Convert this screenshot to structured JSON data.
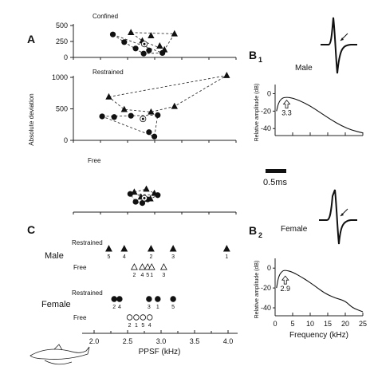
{
  "chart_data": [
    {
      "panel": "A",
      "type": "scatter",
      "ylabel": "Absolute deviation",
      "x_range": [
        2.0,
        4.0
      ],
      "subplots": [
        {
          "name": "Confined",
          "ylim": [
            0,
            500
          ],
          "yticks": [
            "500",
            "250",
            "0"
          ],
          "male": [
            [
              2.55,
              390
            ],
            [
              2.72,
              260
            ],
            [
              2.85,
              340
            ],
            [
              2.98,
              180
            ],
            [
              3.05,
              120
            ],
            [
              3.2,
              370
            ]
          ],
          "female": [
            [
              2.28,
              360
            ],
            [
              2.45,
              240
            ],
            [
              2.62,
              140
            ],
            [
              2.74,
              60
            ],
            [
              2.82,
              110
            ],
            [
              3.02,
              70
            ]
          ],
          "centroid": [
            2.75,
            210
          ]
        },
        {
          "name": "Restrained",
          "ylim": [
            0,
            1000
          ],
          "yticks": [
            "1000",
            "500",
            "0"
          ],
          "male": [
            [
              2.22,
              690
            ],
            [
              2.45,
              490
            ],
            [
              2.85,
              450
            ],
            [
              3.2,
              540
            ],
            [
              3.98,
              1030
            ]
          ],
          "female": [
            [
              2.12,
              380
            ],
            [
              2.3,
              370
            ],
            [
              2.55,
              390
            ],
            [
              2.82,
              130
            ],
            [
              2.9,
              60
            ],
            [
              2.95,
              400
            ]
          ],
          "centroid": [
            2.73,
            340
          ]
        },
        {
          "name": "Free",
          "ylim": [
            0,
            500
          ],
          "male": [
            [
              2.6,
              330
            ],
            [
              2.7,
              250
            ],
            [
              2.78,
              380
            ],
            [
              2.84,
              220
            ],
            [
              2.9,
              310
            ]
          ],
          "female": [
            [
              2.54,
              300
            ],
            [
              2.62,
              170
            ],
            [
              2.72,
              150
            ],
            [
              2.8,
              210
            ],
            [
              2.95,
              280
            ]
          ],
          "centroid": [
            2.75,
            230
          ]
        }
      ]
    },
    {
      "panel": "C",
      "type": "scatter",
      "xlabel": "PPSF (kHz)",
      "xlim": [
        2.0,
        4.0
      ],
      "xticks": [
        "2.0",
        "2.5",
        "3.0",
        "3.5",
        "4.0"
      ],
      "groups": [
        {
          "sex": "Male",
          "rows": [
            {
              "label": "Restrained",
              "marker": "filled-triangle",
              "points": [
                {
                  "x": 2.22,
                  "n": "5"
                },
                {
                  "x": 2.45,
                  "n": "4"
                },
                {
                  "x": 2.85,
                  "n": "2"
                },
                {
                  "x": 3.18,
                  "n": "3"
                },
                {
                  "x": 3.98,
                  "n": "1"
                }
              ]
            },
            {
              "label": "Free",
              "marker": "open-triangle",
              "points": [
                {
                  "x": 2.6,
                  "n": "2"
                },
                {
                  "x": 2.72,
                  "n": "4"
                },
                {
                  "x": 2.8,
                  "n": "5"
                },
                {
                  "x": 2.86,
                  "n": "1"
                },
                {
                  "x": 3.04,
                  "n": "3"
                }
              ]
            }
          ]
        },
        {
          "sex": "Female",
          "rows": [
            {
              "label": "Restrained",
              "marker": "filled-circle",
              "points": [
                {
                  "x": 2.3,
                  "n": "2"
                },
                {
                  "x": 2.38,
                  "n": "4"
                },
                {
                  "x": 2.82,
                  "n": "3"
                },
                {
                  "x": 2.95,
                  "n": "1"
                },
                {
                  "x": 3.18,
                  "n": "5"
                }
              ]
            },
            {
              "label": "Free",
              "marker": "open-circle",
              "points": [
                {
                  "x": 2.53,
                  "n": "2"
                },
                {
                  "x": 2.63,
                  "n": "1"
                },
                {
                  "x": 2.73,
                  "n": "5"
                },
                {
                  "x": 2.83,
                  "n": "4"
                }
              ]
            }
          ]
        }
      ]
    },
    {
      "panel": "B1",
      "type": "line",
      "label": "Male",
      "ylabel": "Relative amplitude (dB)",
      "yticks": [
        "0",
        "-20",
        "-40"
      ],
      "ylim": [
        -48,
        5
      ],
      "xlim": [
        0,
        25
      ],
      "peak_label": "3.3",
      "peak_x": 3.3,
      "spectrum": [
        [
          0.4,
          -20
        ],
        [
          1,
          -10
        ],
        [
          2,
          -5
        ],
        [
          3.3,
          -4
        ],
        [
          5,
          -5
        ],
        [
          7,
          -8
        ],
        [
          10,
          -14
        ],
        [
          13,
          -22
        ],
        [
          16,
          -30
        ],
        [
          19,
          -37
        ],
        [
          22,
          -42
        ],
        [
          25,
          -45
        ]
      ]
    },
    {
      "panel": "B2",
      "type": "line",
      "label": "Female",
      "ylabel": "Relative amplitude (dB)",
      "yticks": [
        "0",
        "-20",
        "-40"
      ],
      "ylim": [
        -48,
        5
      ],
      "xlim": [
        0,
        25
      ],
      "xticks": [
        "0",
        "5",
        "10",
        "15",
        "20",
        "25"
      ],
      "xlabel": "Frequency (kHz)",
      "peak_label": "2.9",
      "peak_x": 2.9,
      "spectrum": [
        [
          0.4,
          -20
        ],
        [
          1,
          -8
        ],
        [
          2,
          -3
        ],
        [
          2.9,
          -2
        ],
        [
          5,
          -4
        ],
        [
          8,
          -10
        ],
        [
          11,
          -17
        ],
        [
          14,
          -25
        ],
        [
          17,
          -30
        ],
        [
          20,
          -33
        ],
        [
          22,
          -40
        ],
        [
          25,
          -44
        ]
      ]
    }
  ],
  "scale_bar": "0.5ms"
}
